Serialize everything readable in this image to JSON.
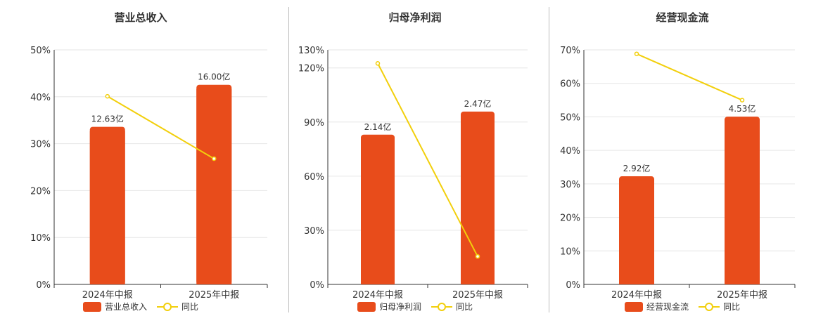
{
  "colors": {
    "bar": "#e84c1b",
    "line": "#f2cf0c",
    "grid": "#e6e6e6",
    "axis": "#333333",
    "text": "#333333"
  },
  "chart_data": [
    {
      "type": "bar",
      "title": "营业总收入",
      "categories": [
        "2024年中报",
        "2025年中报"
      ],
      "series": [
        {
          "name": "营业总收入",
          "type": "bar",
          "values": [
            12.63,
            16.0
          ],
          "labels": [
            "12.63亿",
            "16.00亿"
          ]
        },
        {
          "name": "同比",
          "type": "line",
          "values": [
            40.1,
            26.8
          ]
        }
      ],
      "y_axis": {
        "min": 0,
        "max": 50,
        "ticks": [
          "0%",
          "10%",
          "20%",
          "30%",
          "40%",
          "50%"
        ]
      },
      "grid": true,
      "legend": "bottom"
    },
    {
      "type": "bar",
      "title": "归母净利润",
      "categories": [
        "2024年中报",
        "2025年中报"
      ],
      "series": [
        {
          "name": "归母净利润",
          "type": "bar",
          "values": [
            2.14,
            2.47
          ],
          "labels": [
            "2.14亿",
            "2.47亿"
          ]
        },
        {
          "name": "同比",
          "type": "line",
          "values": [
            122.5,
            15.5
          ]
        }
      ],
      "y_axis": {
        "min": 0,
        "max": 130,
        "ticks": [
          "0%",
          "30%",
          "60%",
          "90%",
          "120%",
          "130%"
        ]
      },
      "grid": true,
      "legend": "bottom"
    },
    {
      "type": "bar",
      "title": "经营现金流",
      "categories": [
        "2024年中报",
        "2025年中报"
      ],
      "series": [
        {
          "name": "经营现金流",
          "type": "bar",
          "values": [
            2.92,
            4.53
          ],
          "labels": [
            "2.92亿",
            "4.53亿"
          ]
        },
        {
          "name": "同比",
          "type": "line",
          "values": [
            68.8,
            55.0
          ]
        }
      ],
      "y_axis": {
        "min": 0,
        "max": 70,
        "ticks": [
          "0%",
          "10%",
          "20%",
          "30%",
          "40%",
          "50%",
          "60%",
          "70%"
        ]
      },
      "grid": true,
      "legend": "bottom"
    }
  ]
}
